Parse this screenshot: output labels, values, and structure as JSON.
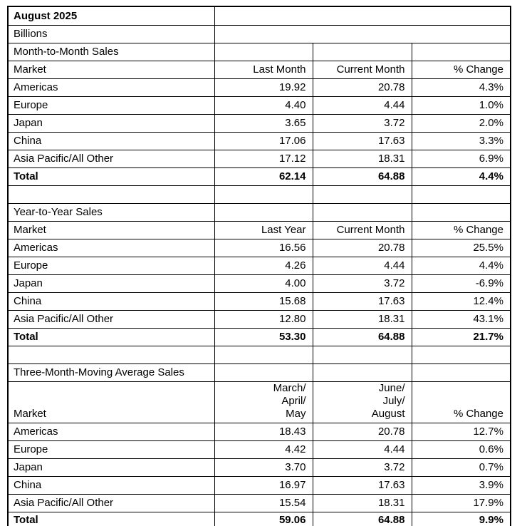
{
  "document": {
    "title": "August 2025",
    "units_label": "Billions"
  },
  "colors": {
    "border": "#000000",
    "background": "#ffffff",
    "text": "#000000"
  },
  "sections": [
    {
      "title": "Month-to-Month Sales",
      "headers": {
        "market": "Market",
        "col1": "Last Month",
        "col2": "Current Month",
        "pct": "% Change"
      },
      "rows": [
        {
          "market": "Americas",
          "col1": "19.92",
          "col2": "20.78",
          "pct": "4.3%"
        },
        {
          "market": "Europe",
          "col1": "4.40",
          "col2": "4.44",
          "pct": "1.0%"
        },
        {
          "market": "Japan",
          "col1": "3.65",
          "col2": "3.72",
          "pct": "2.0%"
        },
        {
          "market": "China",
          "col1": "17.06",
          "col2": "17.63",
          "pct": "3.3%"
        },
        {
          "market": "Asia Pacific/All Other",
          "col1": "17.12",
          "col2": "18.31",
          "pct": "6.9%"
        }
      ],
      "total": {
        "market": "Total",
        "col1": "62.14",
        "col2": "64.88",
        "pct": "4.4%"
      }
    },
    {
      "title": "Year-to-Year Sales",
      "headers": {
        "market": "Market",
        "col1": "Last Year",
        "col2": "Current Month",
        "pct": "% Change"
      },
      "rows": [
        {
          "market": "Americas",
          "col1": "16.56",
          "col2": "20.78",
          "pct": "25.5%"
        },
        {
          "market": "Europe",
          "col1": "4.26",
          "col2": "4.44",
          "pct": "4.4%"
        },
        {
          "market": "Japan",
          "col1": "4.00",
          "col2": "3.72",
          "pct": "-6.9%"
        },
        {
          "market": "China",
          "col1": "15.68",
          "col2": "17.63",
          "pct": "12.4%"
        },
        {
          "market": "Asia Pacific/All Other",
          "col1": "12.80",
          "col2": "18.31",
          "pct": "43.1%"
        }
      ],
      "total": {
        "market": "Total",
        "col1": "53.30",
        "col2": "64.88",
        "pct": "21.7%"
      }
    },
    {
      "title": "Three-Month-Moving Average Sales",
      "headers": {
        "market": "Market",
        "col1": "March/\nApril/\nMay",
        "col2": "June/\nJuly/\nAugust",
        "pct": "% Change"
      },
      "rows": [
        {
          "market": "Americas",
          "col1": "18.43",
          "col2": "20.78",
          "pct": "12.7%"
        },
        {
          "market": "Europe",
          "col1": "4.42",
          "col2": "4.44",
          "pct": "0.6%"
        },
        {
          "market": "Japan",
          "col1": "3.70",
          "col2": "3.72",
          "pct": "0.7%"
        },
        {
          "market": "China",
          "col1": "16.97",
          "col2": "17.63",
          "pct": "3.9%"
        },
        {
          "market": "Asia Pacific/All Other",
          "col1": "15.54",
          "col2": "18.31",
          "pct": "17.9%"
        }
      ],
      "total": {
        "market": "Total",
        "col1": "59.06",
        "col2": "64.88",
        "pct": "9.9%"
      }
    }
  ]
}
